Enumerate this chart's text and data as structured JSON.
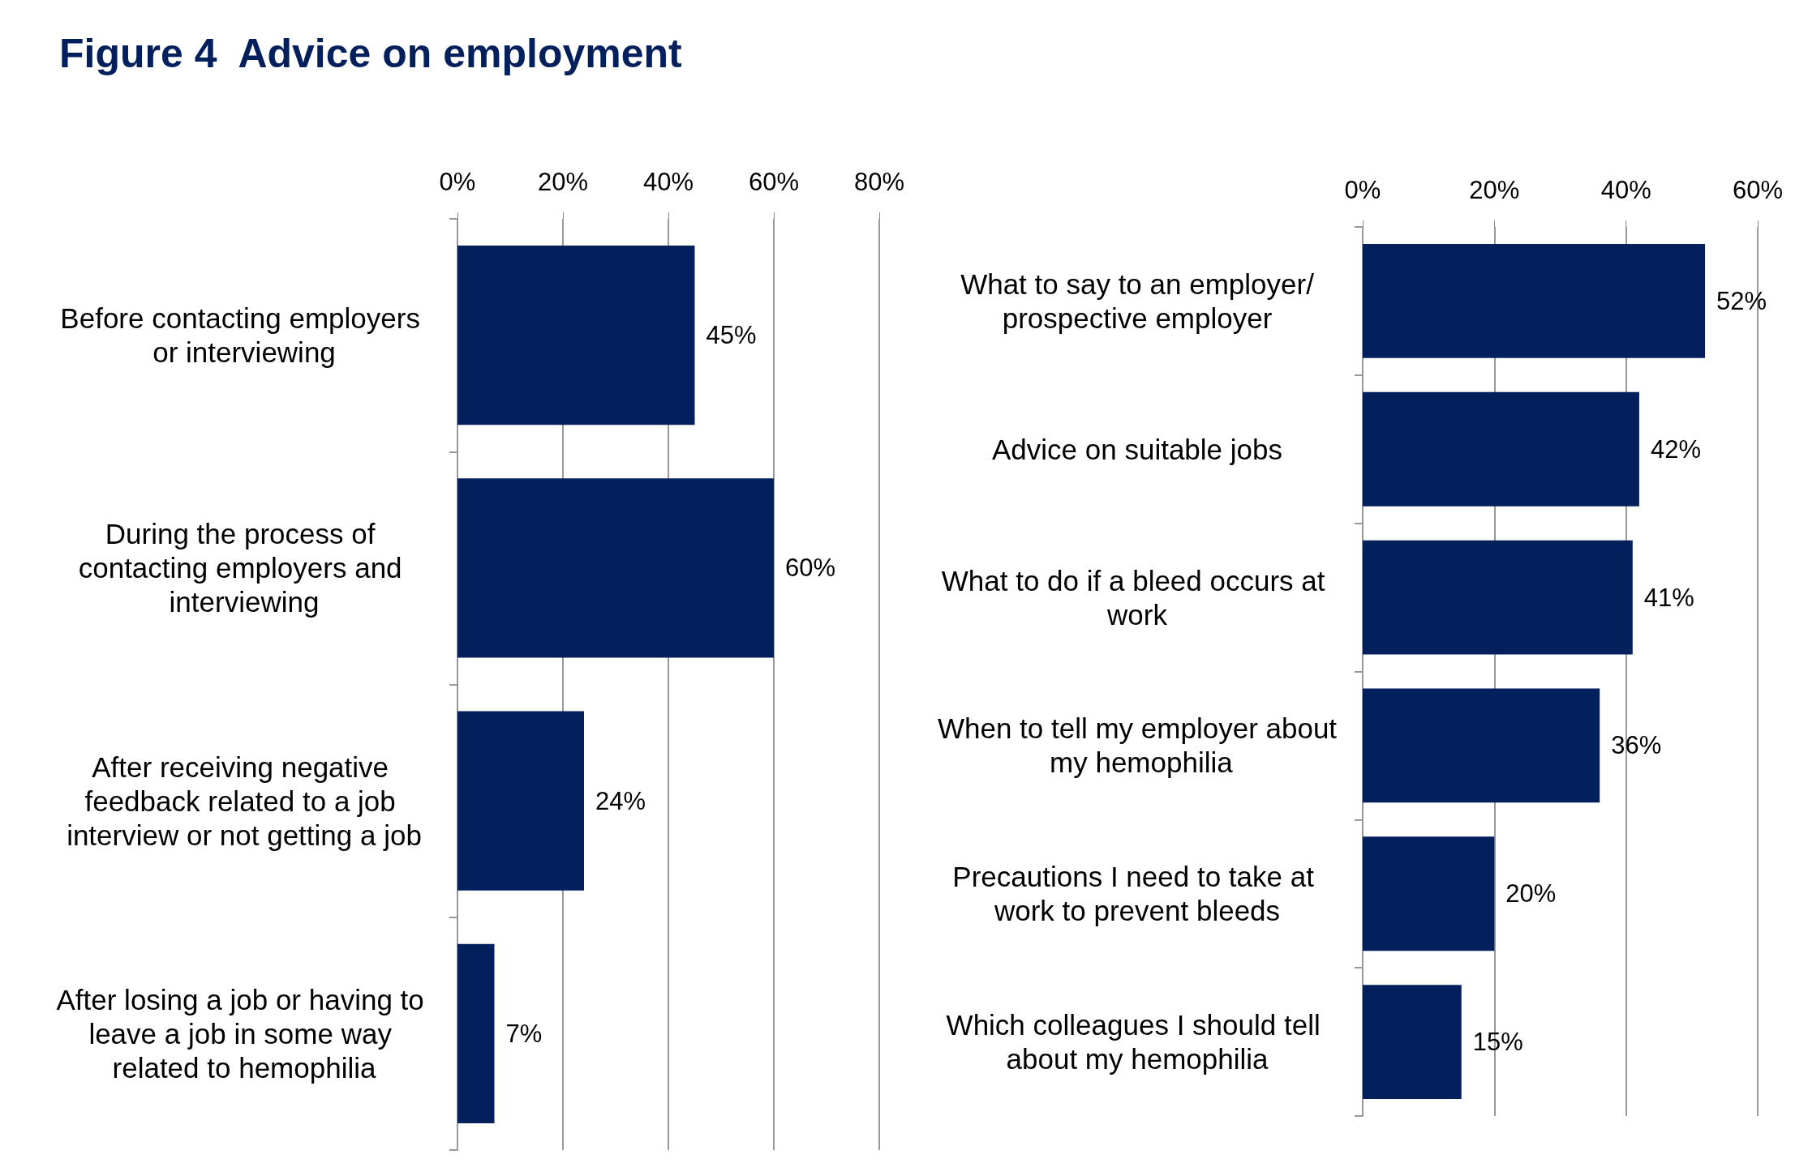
{
  "chart_data": [
    {
      "type": "bar",
      "title": "Figure 4  Advice on employment",
      "orientation": "horizontal",
      "categories": [
        "Before contacting employers or interviewing",
        "During the process of contacting employers and interviewing",
        "After receiving negative feedback related to a job interview or not getting a job",
        "After losing a job or having to leave a job in some way related to hemophilia"
      ],
      "values": [
        45,
        60,
        24,
        7
      ],
      "value_labels": [
        "45%",
        "60%",
        "24%",
        "7%"
      ],
      "color": "#03205c",
      "xlim": [
        0,
        80
      ],
      "xticks": [
        {
          "value": 0,
          "label": "0%"
        },
        {
          "value": 20,
          "label": "20%"
        },
        {
          "value": 40,
          "label": "40%"
        },
        {
          "value": 60,
          "label": "60%"
        },
        {
          "value": 80,
          "label": "80%"
        }
      ],
      "grid": "x"
    },
    {
      "type": "bar",
      "orientation": "horizontal",
      "categories": [
        "What to say to an employer/prospective employer",
        "Advice on suitable jobs",
        "What to do if a bleed occurs at work",
        "When to tell my employer about my hemophilia",
        "Precautions I need to take at work to prevent bleeds",
        "Which colleagues I should tell about my hemophilia"
      ],
      "values": [
        52,
        42,
        41,
        36,
        20,
        15
      ],
      "value_labels": [
        "52%",
        "42%",
        "41%",
        "36%",
        "20%",
        "15%"
      ],
      "color": "#03205c",
      "xlim": [
        0,
        60
      ],
      "xticks": [
        {
          "value": 0,
          "label": "0%"
        },
        {
          "value": 20,
          "label": "20%"
        },
        {
          "value": 40,
          "label": "40%"
        },
        {
          "value": 60,
          "label": "60%"
        }
      ],
      "grid": "x"
    }
  ]
}
